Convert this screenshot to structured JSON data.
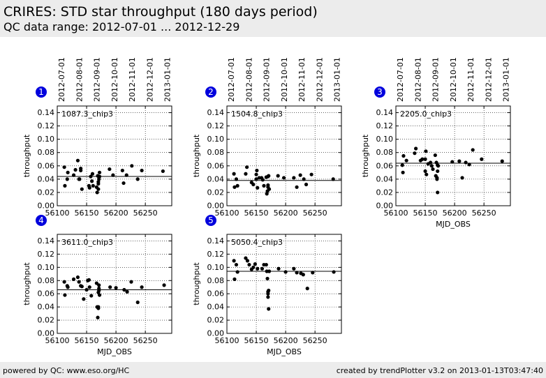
{
  "header": {
    "title": "CRIRES: STD star throughput (180 days period)",
    "subtitle": "QC data range: 2012-07-01 ... 2012-12-29"
  },
  "footer": {
    "left": "powered by QC: www.eso.org/HC",
    "right": "created by trendPlotter v3.2 on 2013-01-13T03:47:40"
  },
  "chart_data": [
    {
      "type": "scatter",
      "index": "1",
      "annotation": "1087.3_chip3",
      "xlabel": "",
      "ylabel": "throughput",
      "xlim": [
        56100,
        56295
      ],
      "ylim": [
        0,
        0.15
      ],
      "xticks": [
        56100,
        56150,
        56200,
        56250
      ],
      "yticks": [
        0.0,
        0.02,
        0.04,
        0.06,
        0.08,
        0.1,
        0.12,
        0.14
      ],
      "top_ticks": [
        "2012-07-01",
        "2012-08-01",
        "2012-09-01",
        "2012-10-01",
        "2012-11-01",
        "2012-12-01",
        "2013-01-01"
      ],
      "reference_line": 0.044,
      "grid": true,
      "x": [
        56112,
        56113,
        56117,
        56118,
        56128,
        56131,
        56135,
        56137,
        56138,
        56140,
        56140,
        56142,
        56154,
        56155,
        56157,
        56159,
        56160,
        56161,
        56167,
        56168,
        56169,
        56170,
        56170,
        56170,
        56171,
        56171,
        56172,
        56172,
        56189,
        56195,
        56211,
        56213,
        56218,
        56227,
        56237,
        56244,
        56280
      ],
      "y": [
        0.058,
        0.03,
        0.04,
        0.05,
        0.046,
        0.054,
        0.068,
        0.04,
        0.04,
        0.053,
        0.056,
        0.025,
        0.03,
        0.027,
        0.044,
        0.037,
        0.048,
        0.03,
        0.028,
        0.02,
        0.045,
        0.025,
        0.033,
        0.036,
        0.04,
        0.043,
        0.044,
        0.05,
        0.055,
        0.046,
        0.053,
        0.034,
        0.046,
        0.06,
        0.04,
        0.053,
        0.052
      ]
    },
    {
      "type": "scatter",
      "index": "2",
      "annotation": "1504.8_chip3",
      "xlabel": "",
      "ylabel": "throughput",
      "xlim": [
        56100,
        56295
      ],
      "ylim": [
        0,
        0.15
      ],
      "xticks": [
        56100,
        56150,
        56200,
        56250
      ],
      "yticks": [
        0.0,
        0.02,
        0.04,
        0.06,
        0.08,
        0.1,
        0.12,
        0.14
      ],
      "top_ticks": [
        "2012-07-01",
        "2012-08-01",
        "2012-09-01",
        "2012-10-01",
        "2012-11-01",
        "2012-12-01",
        "2013-01-01"
      ],
      "reference_line": 0.038,
      "grid": true,
      "x": [
        56112,
        56113,
        56116,
        56118,
        56132,
        56134,
        56142,
        56145,
        56150,
        56150,
        56151,
        56152,
        56155,
        56159,
        56161,
        56163,
        56167,
        56168,
        56169,
        56170,
        56170,
        56170,
        56171,
        56172,
        56187,
        56197,
        56214,
        56219,
        56225,
        56231,
        56235,
        56244,
        56281
      ],
      "y": [
        0.048,
        0.028,
        0.04,
        0.03,
        0.048,
        0.058,
        0.035,
        0.032,
        0.04,
        0.047,
        0.053,
        0.027,
        0.042,
        0.042,
        0.039,
        0.03,
        0.043,
        0.018,
        0.022,
        0.028,
        0.031,
        0.044,
        0.045,
        0.025,
        0.045,
        0.042,
        0.042,
        0.028,
        0.046,
        0.04,
        0.032,
        0.047,
        0.04
      ]
    },
    {
      "type": "scatter",
      "index": "3",
      "annotation": "2205.0_chip3",
      "xlabel": "MJD_OBS",
      "ylabel": "throughput",
      "xlim": [
        56100,
        56295
      ],
      "ylim": [
        0,
        0.15
      ],
      "xticks": [
        56100,
        56150,
        56200,
        56250
      ],
      "yticks": [
        0.0,
        0.02,
        0.04,
        0.06,
        0.08,
        0.1,
        0.12,
        0.14
      ],
      "top_ticks": [
        "2012-07-01",
        "2012-08-01",
        "2012-09-01",
        "2012-10-01",
        "2012-11-01",
        "2012-12-01",
        "2013-01-01"
      ],
      "reference_line": 0.064,
      "grid": true,
      "x": [
        56111,
        56112,
        56113,
        56118,
        56132,
        56134,
        56142,
        56145,
        56150,
        56150,
        56151,
        56152,
        56155,
        56159,
        56161,
        56163,
        56167,
        56168,
        56169,
        56170,
        56170,
        56171,
        56171,
        56171,
        56172,
        56196,
        56208,
        56213,
        56219,
        56225,
        56231,
        56246,
        56281
      ],
      "y": [
        0.061,
        0.05,
        0.075,
        0.068,
        0.079,
        0.086,
        0.068,
        0.07,
        0.052,
        0.07,
        0.082,
        0.047,
        0.063,
        0.065,
        0.06,
        0.055,
        0.076,
        0.045,
        0.065,
        0.04,
        0.042,
        0.052,
        0.061,
        0.02,
        0.06,
        0.066,
        0.067,
        0.042,
        0.065,
        0.062,
        0.084,
        0.07,
        0.067
      ]
    },
    {
      "type": "scatter",
      "index": "4",
      "annotation": "3611.0_chip3",
      "xlabel": "MJD_OBS",
      "ylabel": "throughput",
      "xlim": [
        56100,
        56295
      ],
      "ylim": [
        0,
        0.15
      ],
      "xticks": [
        56100,
        56150,
        56200,
        56250
      ],
      "yticks": [
        0.0,
        0.02,
        0.04,
        0.06,
        0.08,
        0.1,
        0.12,
        0.14
      ],
      "top_ticks": [],
      "reference_line": 0.066,
      "grid": true,
      "x": [
        56112,
        56113,
        56117,
        56118,
        56128,
        56135,
        56137,
        56140,
        56142,
        56145,
        56150,
        56152,
        56154,
        56155,
        56158,
        56167,
        56168,
        56169,
        56170,
        56170,
        56170,
        56171,
        56171,
        56171,
        56172,
        56190,
        56200,
        56214,
        56219,
        56226,
        56237,
        56244,
        56282
      ],
      "y": [
        0.078,
        0.058,
        0.072,
        0.07,
        0.082,
        0.085,
        0.078,
        0.072,
        0.071,
        0.052,
        0.066,
        0.08,
        0.081,
        0.07,
        0.057,
        0.076,
        0.04,
        0.024,
        0.038,
        0.04,
        0.062,
        0.065,
        0.068,
        0.073,
        0.058,
        0.07,
        0.069,
        0.066,
        0.063,
        0.078,
        0.047,
        0.07,
        0.073
      ]
    },
    {
      "type": "scatter",
      "index": "5",
      "annotation": "5050.4_chip3",
      "xlabel": "MJD_OBS",
      "ylabel": "throughput",
      "xlim": [
        56100,
        56295
      ],
      "ylim": [
        0,
        0.15
      ],
      "xticks": [
        56100,
        56150,
        56200,
        56250
      ],
      "yticks": [
        0.0,
        0.02,
        0.04,
        0.06,
        0.08,
        0.1,
        0.12,
        0.14
      ],
      "top_ticks": [],
      "reference_line": 0.094,
      "grid": true,
      "x": [
        56112,
        56113,
        56116,
        56118,
        56132,
        56135,
        56138,
        56142,
        56145,
        56148,
        56152,
        56160,
        56163,
        56167,
        56168,
        56169,
        56170,
        56170,
        56170,
        56171,
        56171,
        56172,
        56188,
        56200,
        56214,
        56219,
        56226,
        56230,
        56237,
        56246,
        56282
      ],
      "y": [
        0.11,
        0.082,
        0.104,
        0.093,
        0.114,
        0.11,
        0.104,
        0.097,
        0.1,
        0.105,
        0.098,
        0.098,
        0.104,
        0.104,
        0.094,
        0.083,
        0.06,
        0.063,
        0.055,
        0.037,
        0.065,
        0.094,
        0.098,
        0.093,
        0.098,
        0.092,
        0.091,
        0.089,
        0.068,
        0.092,
        0.093
      ]
    }
  ]
}
